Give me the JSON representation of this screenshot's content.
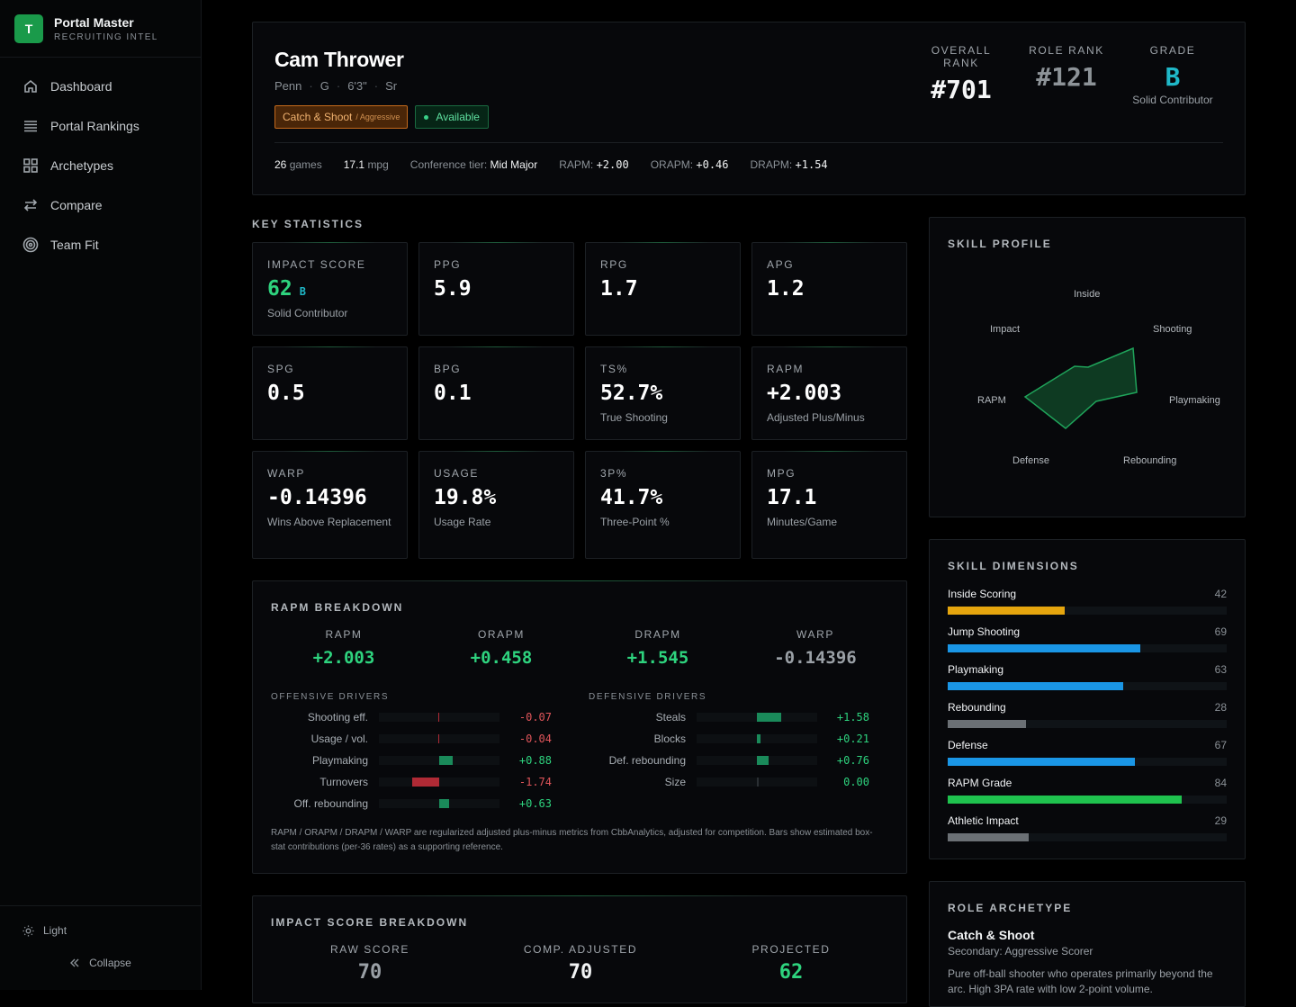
{
  "brand": {
    "logo_letter": "T",
    "name": "Portal Master",
    "subtitle": "RECRUITING INTEL"
  },
  "nav": [
    {
      "label": "Dashboard",
      "icon": "home-icon"
    },
    {
      "label": "Portal Rankings",
      "icon": "list-icon"
    },
    {
      "label": "Archetypes",
      "icon": "grid-icon"
    },
    {
      "label": "Compare",
      "icon": "swap-icon"
    },
    {
      "label": "Team Fit",
      "icon": "target-icon"
    }
  ],
  "sidebar_bottom": {
    "theme_label": "Light",
    "collapse_label": "Collapse"
  },
  "player": {
    "name": "Cam Thrower",
    "school": "Penn",
    "position": "G",
    "height": "6'3\"",
    "class": "Sr",
    "archetype_badge": "Catch & Shoot",
    "archetype_secondary": "/ Aggressive",
    "status": "Available",
    "overall_rank_label": "OVERALL RANK",
    "overall_rank": "#701",
    "role_rank_label": "ROLE RANK",
    "role_rank": "#121",
    "grade_label": "GRADE",
    "grade": "B",
    "grade_desc": "Solid Contributor",
    "games": "26",
    "games_label": "games",
    "mpg": "17.1",
    "mpg_label": "mpg",
    "tier_label": "Conference tier:",
    "tier": "Mid Major",
    "rapm_label": "RAPM:",
    "rapm": "+2.00",
    "orapm_label": "ORAPM:",
    "orapm": "+0.46",
    "drapm_label": "DRAPM:",
    "drapm": "+1.54"
  },
  "key_stats": {
    "title": "KEY STATISTICS",
    "items": [
      {
        "label": "IMPACT SCORE",
        "value": "62",
        "grade": "B",
        "sub": "Solid Contributor"
      },
      {
        "label": "PPG",
        "value": "5.9",
        "sub": ""
      },
      {
        "label": "RPG",
        "value": "1.7",
        "sub": ""
      },
      {
        "label": "APG",
        "value": "1.2",
        "sub": ""
      },
      {
        "label": "SPG",
        "value": "0.5",
        "sub": ""
      },
      {
        "label": "BPG",
        "value": "0.1",
        "sub": ""
      },
      {
        "label": "TS%",
        "value": "52.7%",
        "sub": "True Shooting"
      },
      {
        "label": "RAPM",
        "value": "+2.003",
        "sub": "Adjusted Plus/Minus"
      },
      {
        "label": "WARP",
        "value": "-0.14396",
        "sub": "Wins Above Replacement"
      },
      {
        "label": "USAGE",
        "value": "19.8%",
        "sub": "Usage Rate"
      },
      {
        "label": "3P%",
        "value": "41.7%",
        "sub": "Three-Point %"
      },
      {
        "label": "MPG",
        "value": "17.1",
        "sub": "Minutes/Game"
      }
    ]
  },
  "rapm_breakdown": {
    "title": "RAPM BREAKDOWN",
    "metrics": [
      {
        "label": "RAPM",
        "value": "+2.003",
        "color": "#2ed37e"
      },
      {
        "label": "ORAPM",
        "value": "+0.458",
        "color": "#2ed37e"
      },
      {
        "label": "DRAPM",
        "value": "+1.545",
        "color": "#2ed37e"
      },
      {
        "label": "WARP",
        "value": "-0.14396",
        "color": "#9aa0a6"
      }
    ],
    "offensive_title": "OFFENSIVE DRIVERS",
    "defensive_title": "DEFENSIVE DRIVERS",
    "offensive": [
      {
        "name": "Shooting eff.",
        "value": -0.07,
        "label": "-0.07"
      },
      {
        "name": "Usage / vol.",
        "value": -0.04,
        "label": "-0.04"
      },
      {
        "name": "Playmaking",
        "value": 0.88,
        "label": "+0.88"
      },
      {
        "name": "Turnovers",
        "value": -1.74,
        "label": "-1.74"
      },
      {
        "name": "Off. rebounding",
        "value": 0.63,
        "label": "+0.63"
      }
    ],
    "defensive": [
      {
        "name": "Steals",
        "value": 1.58,
        "label": "+1.58"
      },
      {
        "name": "Blocks",
        "value": 0.21,
        "label": "+0.21"
      },
      {
        "name": "Def. rebounding",
        "value": 0.76,
        "label": "+0.76"
      },
      {
        "name": "Size",
        "value": 0.0,
        "label": "0.00"
      }
    ],
    "note": "RAPM / ORAPM / DRAPM / WARP are regularized adjusted plus-minus metrics from CbbAnalytics, adjusted for competition. Bars show estimated box-stat contributions (per-36 rates) as a supporting reference."
  },
  "impact_breakdown": {
    "title": "IMPACT SCORE BREAKDOWN",
    "items": [
      {
        "label": "RAW SCORE",
        "value": "70",
        "color": "#9aa0a6"
      },
      {
        "label": "COMP. ADJUSTED",
        "value": "70",
        "color": "#f2f4f5"
      },
      {
        "label": "PROJECTED",
        "value": "62",
        "color": "#2ed37e"
      }
    ]
  },
  "skill_profile": {
    "title": "SKILL PROFILE",
    "axes": [
      "Inside",
      "Shooting",
      "Playmaking",
      "Rebounding",
      "Defense",
      "RAPM",
      "Impact"
    ]
  },
  "skill_dimensions": {
    "title": "SKILL DIMENSIONS",
    "items": [
      {
        "name": "Inside Scoring",
        "value": 42,
        "color": "#e5a50e"
      },
      {
        "name": "Jump Shooting",
        "value": 69,
        "color": "#1a96e6"
      },
      {
        "name": "Playmaking",
        "value": 63,
        "color": "#1a96e6"
      },
      {
        "name": "Rebounding",
        "value": 28,
        "color": "#6b7075"
      },
      {
        "name": "Defense",
        "value": 67,
        "color": "#1a96e6"
      },
      {
        "name": "RAPM Grade",
        "value": 84,
        "color": "#1fc24e"
      },
      {
        "name": "Athletic Impact",
        "value": 29,
        "color": "#6b7075"
      }
    ]
  },
  "role_archetype": {
    "title": "ROLE ARCHETYPE",
    "primary": "Catch & Shoot",
    "secondary": "Secondary: Aggressive Scorer",
    "description": "Pure off-ball shooter who operates primarily beyond the arc. High 3PA rate with low 2-point volume."
  },
  "colors": {
    "accent": "#1a9a4a",
    "positive": "#2ed37e",
    "negative": "#e0555a",
    "grade": "#1fb8c8"
  }
}
